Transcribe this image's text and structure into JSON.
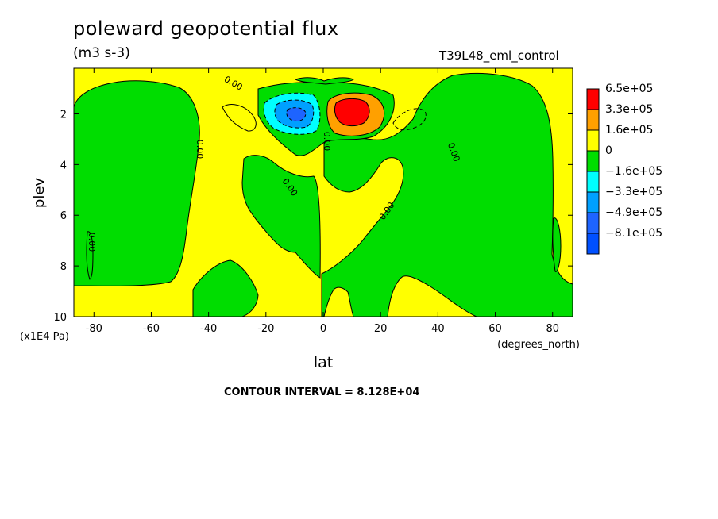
{
  "chart_data": {
    "type": "heatmap",
    "title": "poleward geopotential flux",
    "subtitle": "(m3 s-3)",
    "run_label": "T39L48_eml_control",
    "xlabel": "lat",
    "xunits": "(degrees_north)",
    "ylabel": "plev",
    "yunits": "(x1E4 Pa)",
    "xlim": [
      -87,
      87
    ],
    "ylim": [
      10,
      0.2
    ],
    "xticks": [
      "-80",
      "-60",
      "-40",
      "-20",
      "0",
      "20",
      "40",
      "60",
      "80"
    ],
    "yticks": [
      "2",
      "4",
      "6",
      "8",
      "10"
    ],
    "contour_interval_text": "CONTOUR INTERVAL = 8.128E+04",
    "contour_labels": [
      "0.00",
      "0.00",
      "0.00",
      "0.00",
      "0.00",
      "0.00",
      "0.00"
    ],
    "legend": {
      "labels": [
        "6.5e+05",
        "3.3e+05",
        "1.6e+05",
        "0",
        "−1.6e+05",
        "−3.3e+05",
        "−4.9e+05",
        "−8.1e+05"
      ],
      "colors": [
        "#ff0000",
        "#ffa000",
        "#ffff00",
        "#00dd00",
        "#00ffff",
        "#00a0ff",
        "#1e64ff",
        "#0050ff"
      ]
    },
    "fields": {
      "negative_center": {
        "lat": -10,
        "plev": 2.0,
        "value": -650000.0
      },
      "positive_center": {
        "lat": 10,
        "plev": 2.0,
        "value": 650000.0
      }
    }
  },
  "colors": {
    "yellow": "#ffff00",
    "green": "#00dd00",
    "background": "#ffffff"
  }
}
